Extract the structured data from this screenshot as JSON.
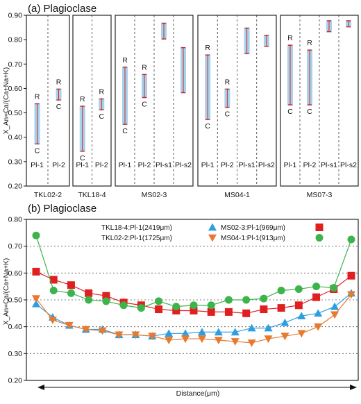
{
  "chart_data": [
    {
      "type": "range",
      "title": "(a) Plagioclase",
      "ylabel": "X_An=Ca/(Ca+Na+K)",
      "ylim": [
        0.2,
        0.9
      ],
      "yticks": [
        "0.20",
        "0.30",
        "0.40",
        "0.50",
        "0.60",
        "0.70",
        "0.80",
        "0.90"
      ],
      "core_label": "C",
      "rim_label": "R",
      "colors": {
        "bar": "#a6d2ec",
        "end": "#e02020"
      },
      "groups": [
        {
          "name": "TKL02-2",
          "columns": [
            {
              "label": "Pl-1",
              "min": 0.37,
              "max": 0.54,
              "core": 0.37,
              "rim": 0.53
            },
            {
              "label": "Pl-2",
              "min": 0.55,
              "max": 0.6,
              "core": 0.55,
              "rim": 0.59
            }
          ]
        },
        {
          "name": "TKL18-4",
          "columns": [
            {
              "label": "Pl-1",
              "min": 0.34,
              "max": 0.53,
              "core": 0.34,
              "rim": 0.52
            },
            {
              "label": "Pl-2",
              "min": 0.51,
              "max": 0.56,
              "core": 0.51,
              "rim": 0.55
            }
          ]
        },
        {
          "name": "MS02-3",
          "columns": [
            {
              "label": "Pl-1",
              "min": 0.45,
              "max": 0.69,
              "core": 0.45,
              "rim": 0.68
            },
            {
              "label": "Pl-2",
              "min": 0.56,
              "max": 0.66,
              "core": 0.56,
              "rim": 0.65
            },
            {
              "label": "Pl-s1",
              "min": 0.8,
              "max": 0.87
            },
            {
              "label": "Pl-s2",
              "min": 0.58,
              "max": 0.77
            }
          ]
        },
        {
          "name": "MS04-1",
          "columns": [
            {
              "label": "Pl-1",
              "min": 0.47,
              "max": 0.74,
              "core": 0.47,
              "rim": 0.73
            },
            {
              "label": "Pl-2",
              "min": 0.52,
              "max": 0.6,
              "core": 0.52,
              "rim": 0.59
            },
            {
              "label": "Pl-s1",
              "min": 0.74,
              "max": 0.85
            },
            {
              "label": "Pl-s2",
              "min": 0.77,
              "max": 0.82
            }
          ]
        },
        {
          "name": "MS07-3",
          "columns": [
            {
              "label": "Pl-1",
              "min": 0.53,
              "max": 0.78,
              "core": 0.53,
              "rim": 0.77
            },
            {
              "label": "Pl-2",
              "min": 0.53,
              "max": 0.76,
              "core": 0.53,
              "rim": 0.75
            },
            {
              "label": "Pl-s1",
              "min": 0.83,
              "max": 0.88
            },
            {
              "label": "Pl-s2",
              "min": 0.85,
              "max": 0.88
            }
          ]
        }
      ]
    },
    {
      "type": "line",
      "title": "(b) Plagioclase",
      "ylabel": "X_An=Ca/(Ca+Na+K)",
      "xlabel": "Distance(μm)",
      "ylim": [
        0.2,
        0.8
      ],
      "yticks": [
        "0.20",
        "0.30",
        "0.40",
        "0.50",
        "0.60",
        "0.70",
        "0.80"
      ],
      "grid": "dotted horizontal",
      "legend_position": "top",
      "series": [
        {
          "name": "TKL18-4:Pl-1(2419μm)",
          "marker": "triangle-up",
          "color": "#2e9ee0",
          "values": [
            0.485,
            0.435,
            0.405,
            0.39,
            0.39,
            0.37,
            0.37,
            0.365,
            0.375,
            0.375,
            0.38,
            0.38,
            0.38,
            0.395,
            0.395,
            0.415,
            0.44,
            0.45,
            0.475,
            0.525
          ]
        },
        {
          "name": "TKL02-2:Pl-1(1725μm)",
          "marker": "triangle-down",
          "color": "#e87a2e",
          "values": [
            0.505,
            0.425,
            0.405,
            0.39,
            0.385,
            0.37,
            0.37,
            0.365,
            0.35,
            0.355,
            0.355,
            0.35,
            0.345,
            0.34,
            0.355,
            0.365,
            0.375,
            0.4,
            0.445,
            0.52
          ]
        },
        {
          "name": "MS02-3:Pl-1(969μm)",
          "marker": "square",
          "color": "#e02020",
          "values": [
            0.605,
            0.575,
            0.555,
            0.525,
            0.515,
            0.49,
            0.48,
            0.465,
            0.46,
            0.46,
            0.455,
            0.455,
            0.45,
            0.465,
            0.47,
            0.48,
            0.51,
            0.54,
            0.59
          ]
        },
        {
          "name": "MS04-1:Pl-1(913μm)",
          "marker": "circle",
          "color": "#3cb44b",
          "values": [
            0.74,
            0.535,
            0.525,
            0.5,
            0.495,
            0.48,
            0.47,
            0.495,
            0.475,
            0.48,
            0.48,
            0.5,
            0.5,
            0.505,
            0.535,
            0.54,
            0.55,
            0.545,
            0.725
          ]
        }
      ]
    }
  ]
}
